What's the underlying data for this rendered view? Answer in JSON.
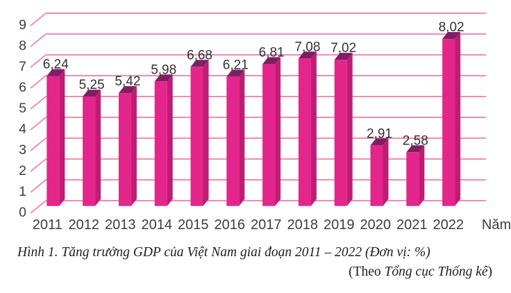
{
  "figure": {
    "caption_line1": "Hình 1. Tăng trưởng GDP của Việt Nam giai đoạn 2011 – 2022 (Đơn vị: %)",
    "caption_line2_prefix": "(Theo ",
    "caption_line2_source": "Tổng cục Thống kê",
    "caption_line2_suffix": ")"
  },
  "chart_data": {
    "type": "bar",
    "style": "3d-oblique",
    "title": "Tăng trưởng GDP của Việt Nam giai đoạn 2011 – 2022",
    "unit": "%",
    "xlabel": "Năm",
    "ylabel": "",
    "ylim": [
      0,
      9
    ],
    "ytick_step": 1,
    "grid": true,
    "legend_position": "none",
    "categories": [
      "2011",
      "2012",
      "2013",
      "2014",
      "2015",
      "2016",
      "2017",
      "2018",
      "2019",
      "2020",
      "2021",
      "2022"
    ],
    "values": [
      6.24,
      5.25,
      5.42,
      5.98,
      6.68,
      6.21,
      6.81,
      7.08,
      7.02,
      2.91,
      2.58,
      8.02
    ],
    "value_labels": [
      "6,24",
      "5,25",
      "5,42",
      "5,98",
      "6,68",
      "6,21",
      "6,81",
      "7,08",
      "7,02",
      "2,91",
      "2,58",
      "8,02"
    ],
    "colors": {
      "bar_front": "#E3258C",
      "bar_side": "#C01C74",
      "bar_top": "#7E1F63",
      "gridline": "#F17AAE",
      "value_text": "#313131",
      "axis_text": "#3d3d3d"
    }
  }
}
